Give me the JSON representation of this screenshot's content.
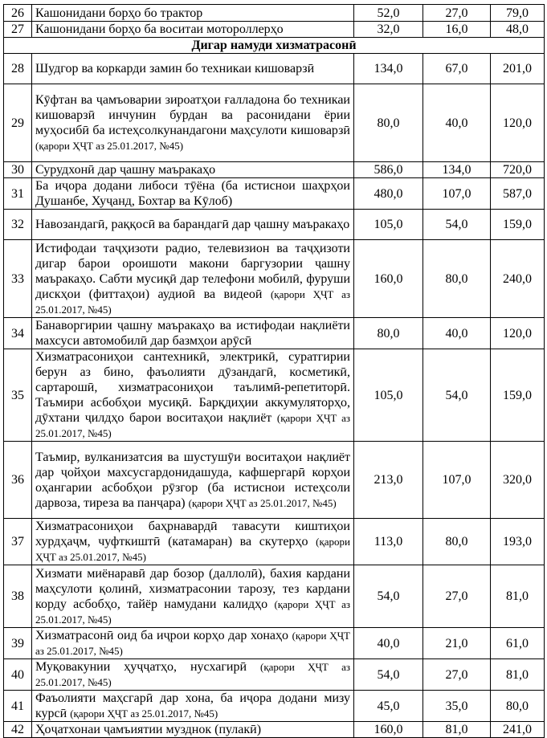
{
  "table": {
    "rows": [
      {
        "no": "26",
        "text": "Кашонидани борҳо бо трактор",
        "values": [
          "52,0",
          "27,0",
          "79,0"
        ]
      },
      {
        "no": "27",
        "text": "Кашонидани борҳо ба воситаи мотороллерҳо",
        "values": [
          "32,0",
          "16,0",
          "48,0"
        ]
      },
      {
        "section": "Дигар намуди хизматрасонӣ"
      },
      {
        "no": "28",
        "text": "Шудгор ва коркарди замин бо техникаи кишоварзӣ",
        "values": [
          "134,0",
          "67,0",
          "201,0"
        ]
      },
      {
        "no": "29",
        "text": "Кӯфтан ва ҷамъоварии зироатҳои ғалладона бо техникаи кишоварзӣ инчунин бурдан ва расонидани ёрии муҳосибӣ ба истеҳсолкунандагони маҳсулоти кишоварзӣ",
        "note": "(қарори ҲҶТ аз 25.01.2017, №45)",
        "values": [
          "80,0",
          "40,0",
          "120,0"
        ]
      },
      {
        "no": "30",
        "text": "Сурудхонӣ дар ҷашну маъракаҳо",
        "values": [
          "586,0",
          "134,0",
          "720,0"
        ]
      },
      {
        "no": "31",
        "text": "Ба иҷора додани либоси тӯёна (ба истиснои шаҳрҳои Душанбе, Хуҷанд, Бохтар ва Кӯлоб)",
        "values": [
          "480,0",
          "107,0",
          "587,0"
        ]
      },
      {
        "no": "32",
        "text": "Навозандагӣ, раққосӣ ва барандагӣ дар ҷашну маъракаҳо",
        "values": [
          "105,0",
          "54,0",
          "159,0"
        ]
      },
      {
        "no": "33",
        "text": "Истифодаи таҷҳизоти радио, телевизион ва таҷҳизоти дигар барои ороишоти макони баргузории ҷашну маъракаҳо. Сабти мусиқӣ дар телефони мобилӣ, фуруши дискҳои (фиттаҳои) аудиоӣ ва видеоӣ",
        "note": "(қарори ҲҶТ аз 25.01.2017, №45)",
        "values": [
          "160,0",
          "80,0",
          "240,0"
        ]
      },
      {
        "no": "34",
        "text": "Банаворгирии ҷашну маъракаҳо ва истифодаи нақлиёти махсуси автомобилӣ дар базмҳои арӯсӣ",
        "values": [
          "80,0",
          "40,0",
          "120,0"
        ]
      },
      {
        "no": "35",
        "text": "Хизматрасониҳои сантехникӣ, электрикӣ, суратгирии берун аз бино, фаъолияти дӯзандагӣ, косметикӣ, сартарошӣ, хизматрасониҳои таълимӣ-репетиторӣ. Таъмири асбобҳои мусиқӣ. Барқдиҳии аккумуляторҳо, дӯхтани ҷилдҳо барои воситаҳои нақлиёт",
        "note": "(қарори ҲҶТ аз 25.01.2017, №45)",
        "values": [
          "105,0",
          "54,0",
          "159,0"
        ]
      },
      {
        "no": "36",
        "text": "Таъмир, вулканизатсия ва шустушӯи воситаҳои нақлиёт дар ҷойҳои махсусгардонидашуда, кафшергарӣ корҳои оҳангарии асбобҳои рӯзгор (ба истиснои истеҳсоли дарвоза, тиреза ва панҷара)",
        "note": "(қарори ҲҶТ аз 25.01.2017, №45)",
        "values": [
          "213,0",
          "107,0",
          "320,0"
        ]
      },
      {
        "no": "37",
        "text": "Хизматрасониҳои баҳрнавардӣ тавасути киштиҳои хурдҳаҷм, чуфткиштӣ (катамаран) ва скутерҳо",
        "note": "(қарори ҲҶТ аз 25.01.2017, №45)",
        "values": [
          "113,0",
          "80,0",
          "193,0"
        ]
      },
      {
        "no": "38",
        "text": "Хизмати миёнаравӣ дар бозор (даллолӣ), бахия кардани маҳсулоти қолинӣ, хизматрасонии тарозу, тез кардани корду асбобҳо, тайёр намудани калидҳо",
        "note": "(қарори ҲҶТ аз 25.01.2017, №45)",
        "values": [
          "54,0",
          "27,0",
          "81,0"
        ]
      },
      {
        "no": "39",
        "text": "Хизматрасонӣ оид ба иҷрои корҳо дар хонаҳо",
        "note": "(қарори ҲҶТ аз 25.01.2017, №45)",
        "values": [
          "40,0",
          "21,0",
          "61,0"
        ]
      },
      {
        "no": "40",
        "text": "Муқовакунии ҳуҷҷатҳо, нусхагирӣ",
        "note": "(қарори ҲҶТ аз 25.01.2017, №45)",
        "values": [
          "54,0",
          "27,0",
          "81,0"
        ]
      },
      {
        "no": "41",
        "text": "Фаъолияти маҳсгарӣ дар хона, ба иҷора додани мизу курсӣ",
        "note": "(қарори ҲҶТ аз 25.01.2017, №45)",
        "values": [
          "45,0",
          "35,0",
          "80,0"
        ]
      },
      {
        "no": "42",
        "text": "Ҳоҷатхонаи ҷамъиятии музднок (пулакӣ)",
        "values": [
          "160,0",
          "81,0",
          "241,0"
        ]
      }
    ]
  }
}
